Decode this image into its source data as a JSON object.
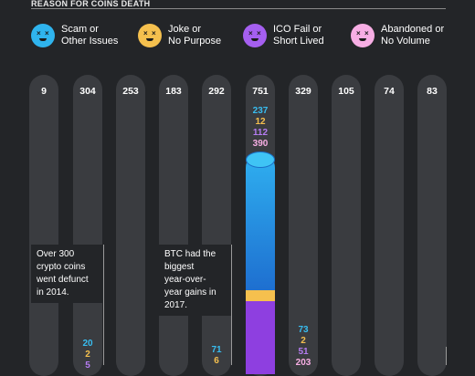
{
  "header": {
    "title": "REASON FOR COINS DEATH"
  },
  "legend": [
    {
      "line1": "Scam or",
      "line2": "Other Issues",
      "color": "#2fb4ee",
      "icon": "dead-face-icon"
    },
    {
      "line1": "Joke or",
      "line2": "No Purpose",
      "color": "#f5c04e",
      "icon": "dead-face-icon"
    },
    {
      "line1": "ICO Fail or",
      "line2": "Short Lived",
      "color": "#a55ff0",
      "icon": "dead-face-icon"
    },
    {
      "line1": "Abandoned or",
      "line2": "No Volume",
      "color": "#f7aee4",
      "icon": "dead-face-icon"
    }
  ],
  "chart_data": {
    "type": "bar",
    "totals": [
      "9",
      "304",
      "253",
      "183",
      "292",
      "751",
      "329",
      "105",
      "74",
      "83"
    ],
    "breakdowns": [
      {
        "column": 5,
        "values": [
          "237",
          "12",
          "112",
          "390"
        ]
      },
      {
        "column": 6,
        "values": [
          "73",
          "2",
          "51",
          "203"
        ]
      },
      {
        "column": 1,
        "values": [
          "20",
          "2",
          "5"
        ]
      },
      {
        "column": 4,
        "values": [
          "71",
          "6"
        ]
      }
    ],
    "breakdown_colors": [
      "#38bdf0",
      "#f5c04e",
      "#b57cf2",
      "#f7aee4"
    ],
    "annotations": [
      {
        "lines": [
          "Over 300",
          "crypto coins",
          "went defunct",
          "in 2014."
        ]
      },
      {
        "lines": [
          "BTC had the",
          "biggest",
          "year-over-",
          "year gains in",
          "2017."
        ]
      }
    ]
  }
}
